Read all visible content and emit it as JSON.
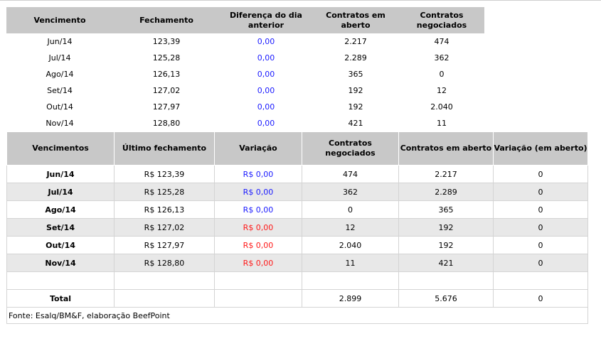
{
  "table1": {
    "headers": [
      "Vencimento",
      "Fechamento",
      "Diferença do dia anterior",
      "Contratos em aberto",
      "Contratos negociados"
    ],
    "rows": [
      [
        "Jun/14",
        "123,39",
        "0,00",
        "2.217",
        "474"
      ],
      [
        "Jul/14",
        "125,28",
        "0,00",
        "2.289",
        "362"
      ],
      [
        "Ago/14",
        "126,13",
        "0,00",
        "365",
        "0"
      ],
      [
        "Set/14",
        "127,02",
        "0,00",
        "192",
        "12"
      ],
      [
        "Out/14",
        "127,97",
        "0,00",
        "192",
        "2.040"
      ],
      [
        "Nov/14",
        "128,80",
        "0,00",
        "421",
        "11"
      ]
    ]
  },
  "table2": {
    "headers": [
      "Vencimentos",
      "Último fechamento",
      "Variação",
      "Contratos negociados",
      "Contratos em aberto",
      "Variação (em aberto)"
    ],
    "rows": [
      [
        "Jun/14",
        "R$ 123,39",
        "R$ 0,00",
        "474",
        "2.217",
        "0"
      ],
      [
        "Jul/14",
        "R$ 125,28",
        "R$ 0,00",
        "362",
        "2.289",
        "0"
      ],
      [
        "Ago/14",
        "R$ 126,13",
        "R$ 0,00",
        "0",
        "365",
        "0"
      ],
      [
        "Set/14",
        "R$ 127,02",
        "R$ 0,00",
        "12",
        "192",
        "0"
      ],
      [
        "Out/14",
        "R$ 127,97",
        "R$ 0,00",
        "2.040",
        "192",
        "0"
      ],
      [
        "Nov/14",
        "R$ 128,80",
        "R$ 0,00",
        "11",
        "421",
        "0"
      ]
    ],
    "total": [
      "Total",
      "",
      "",
      "2.899",
      "5.676",
      "0"
    ],
    "footer": "Fonte: Esalq/BM&F, elaboração BeefPoint"
  },
  "colors": {
    "header_bg": "#c8c8c8",
    "alt_row_bg": "#e8e8e8",
    "blue_value": "#1a1aff",
    "red_value": "#ff1a1a"
  }
}
